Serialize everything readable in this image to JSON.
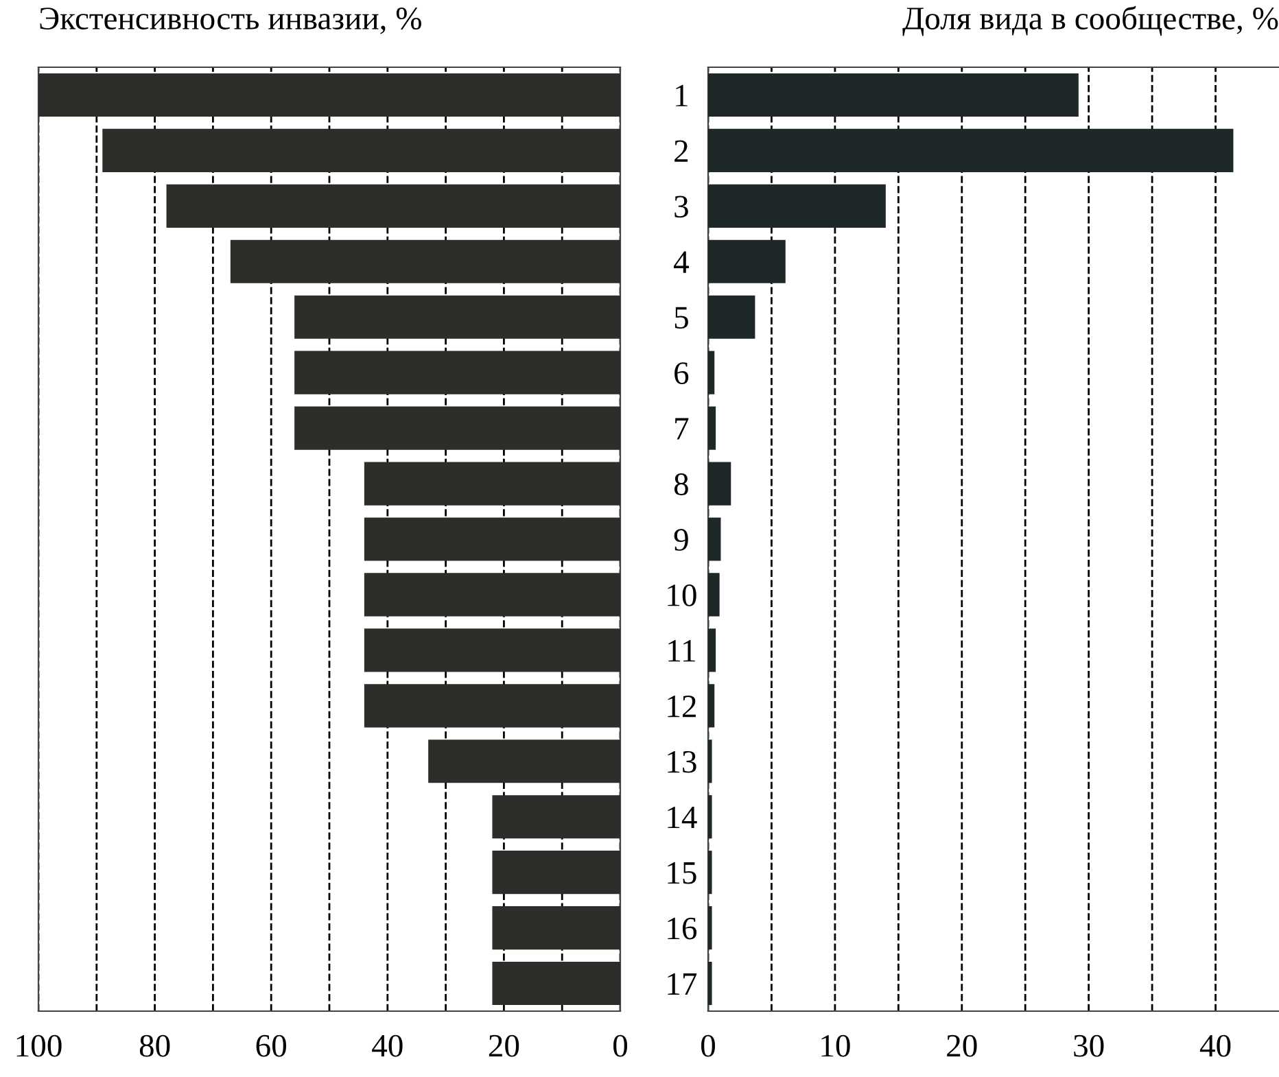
{
  "chart_data": [
    {
      "type": "bar",
      "orientation": "horizontal",
      "title": "Экстенсивность инвазии, %",
      "categories": [
        "1",
        "2",
        "3",
        "4",
        "5",
        "6",
        "7",
        "8",
        "9",
        "10",
        "11",
        "12",
        "13",
        "14",
        "15",
        "16",
        "17"
      ],
      "values": [
        100,
        89,
        78,
        67,
        56,
        56,
        56,
        44,
        44,
        44,
        44,
        44,
        33,
        22,
        22,
        22,
        22
      ],
      "color": "#2d2e29",
      "xlim": [
        100,
        0
      ],
      "xticks": [
        100,
        {
          "value": 90,
          "label": null
        },
        80,
        {
          "value": 70,
          "label": null
        },
        60,
        {
          "value": 50,
          "label": null
        },
        40,
        {
          "value": 30,
          "label": null
        },
        20,
        {
          "value": 10,
          "label": null
        },
        0
      ],
      "grid": "x",
      "line_style": "dashed"
    },
    {
      "type": "bar",
      "orientation": "horizontal",
      "title": "Доля вида в сообществе, %",
      "categories": [
        "1",
        "2",
        "3",
        "4",
        "5",
        "6",
        "7",
        "8",
        "9",
        "10",
        "11",
        "12",
        "13",
        "14",
        "15",
        "16",
        "17"
      ],
      "values": [
        29.2,
        41.4,
        14.0,
        6.1,
        3.7,
        0.5,
        0.6,
        1.8,
        1.0,
        0.9,
        0.6,
        0.5,
        0.3,
        0.3,
        0.3,
        0.3,
        0.3
      ],
      "color": "#1f2829",
      "xlim": [
        0,
        45
      ],
      "xticks": [
        0,
        {
          "value": 5,
          "label": null
        },
        10,
        {
          "value": 15,
          "label": null
        },
        20,
        {
          "value": 25,
          "label": null
        },
        30,
        {
          "value": 35,
          "label": null
        },
        40
      ],
      "grid": "x",
      "line_style": "dashed",
      "tick_labels": "x"
    }
  ]
}
